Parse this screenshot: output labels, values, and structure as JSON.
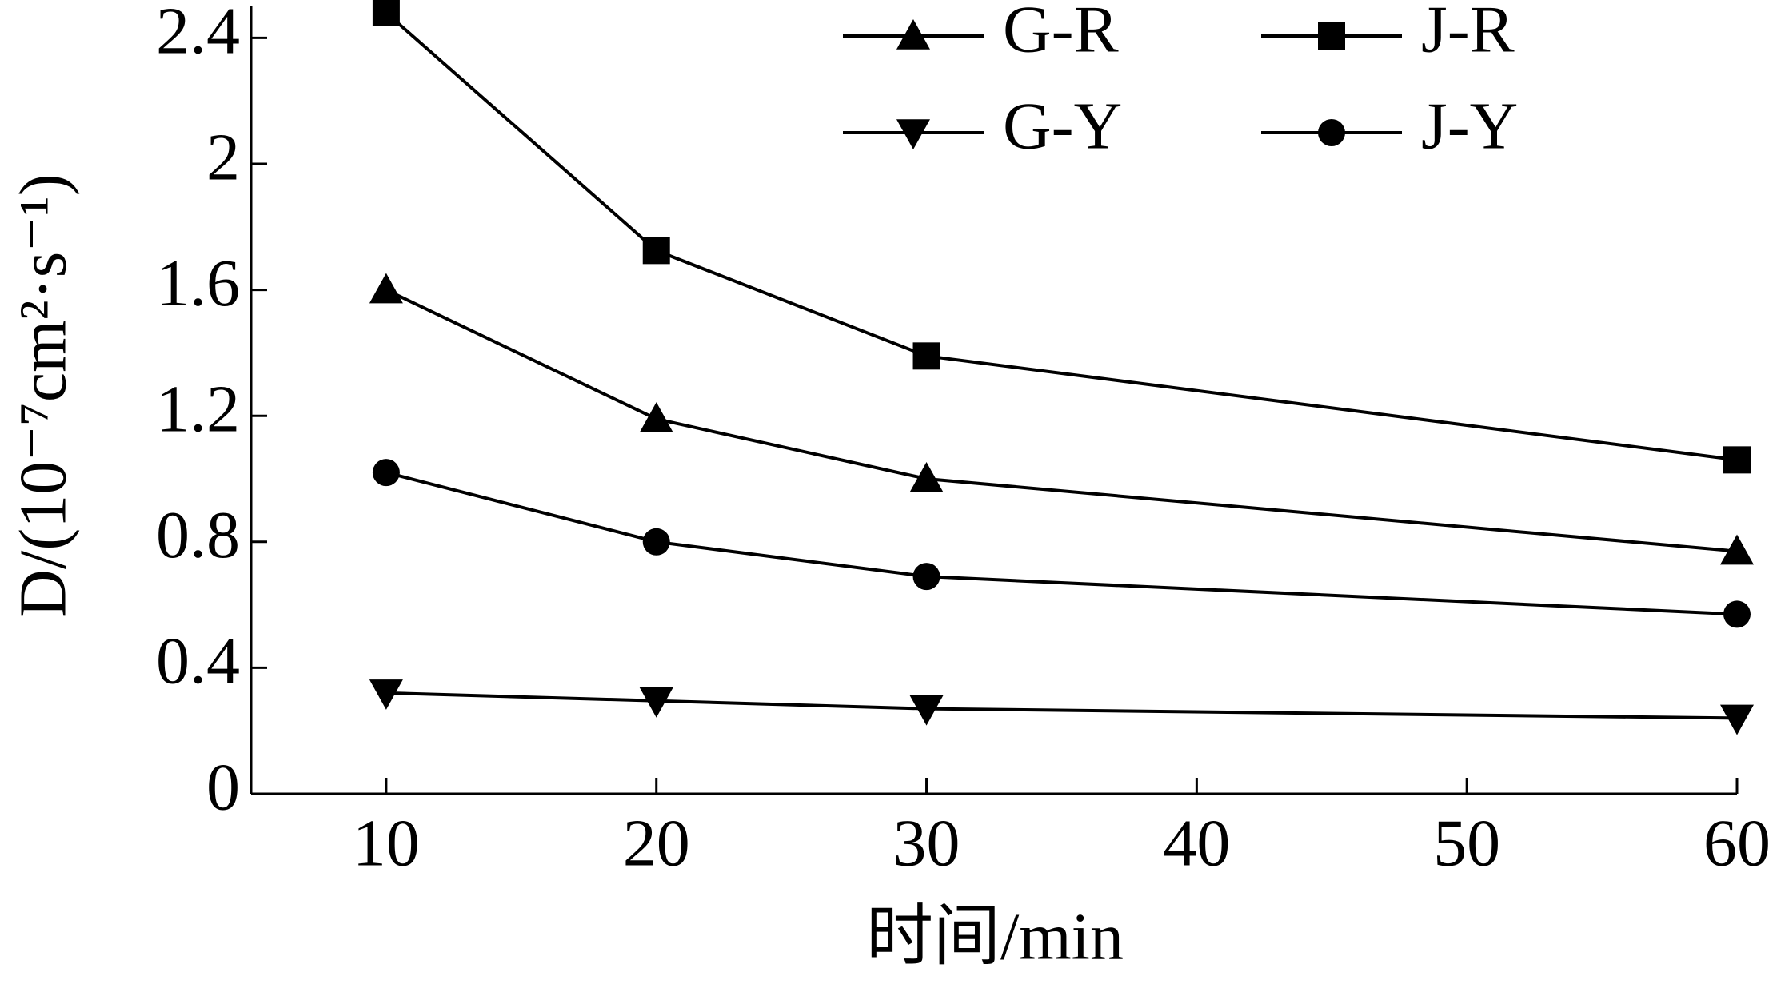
{
  "chart_data": {
    "type": "line",
    "x_label": "时间/min",
    "y_label": "D/(10⁻⁷cm²·s⁻¹)",
    "x": [
      10,
      20,
      30,
      60
    ],
    "xlim": [
      5,
      60
    ],
    "xticks": [
      10,
      20,
      30,
      40,
      50,
      60
    ],
    "ylim": [
      0,
      2.5
    ],
    "yticks": [
      0,
      0.4,
      0.8,
      1.2,
      1.6,
      2.0,
      2.4
    ],
    "grid": false,
    "legend_position": "top-right",
    "series": [
      {
        "name": "G-R",
        "color": "#000000",
        "marker": "triangle-up",
        "values": [
          1.6,
          1.19,
          1.0,
          0.77
        ]
      },
      {
        "name": "J-R",
        "color": "#000000",
        "marker": "square",
        "values": [
          2.48,
          1.725,
          1.39,
          1.06
        ]
      },
      {
        "name": "G-Y",
        "color": "#000000",
        "marker": "triangle-down",
        "values": [
          0.32,
          0.295,
          0.27,
          0.24
        ]
      },
      {
        "name": "J-Y",
        "color": "#000000",
        "marker": "circle",
        "values": [
          1.02,
          0.8,
          0.69,
          0.57
        ]
      }
    ]
  }
}
